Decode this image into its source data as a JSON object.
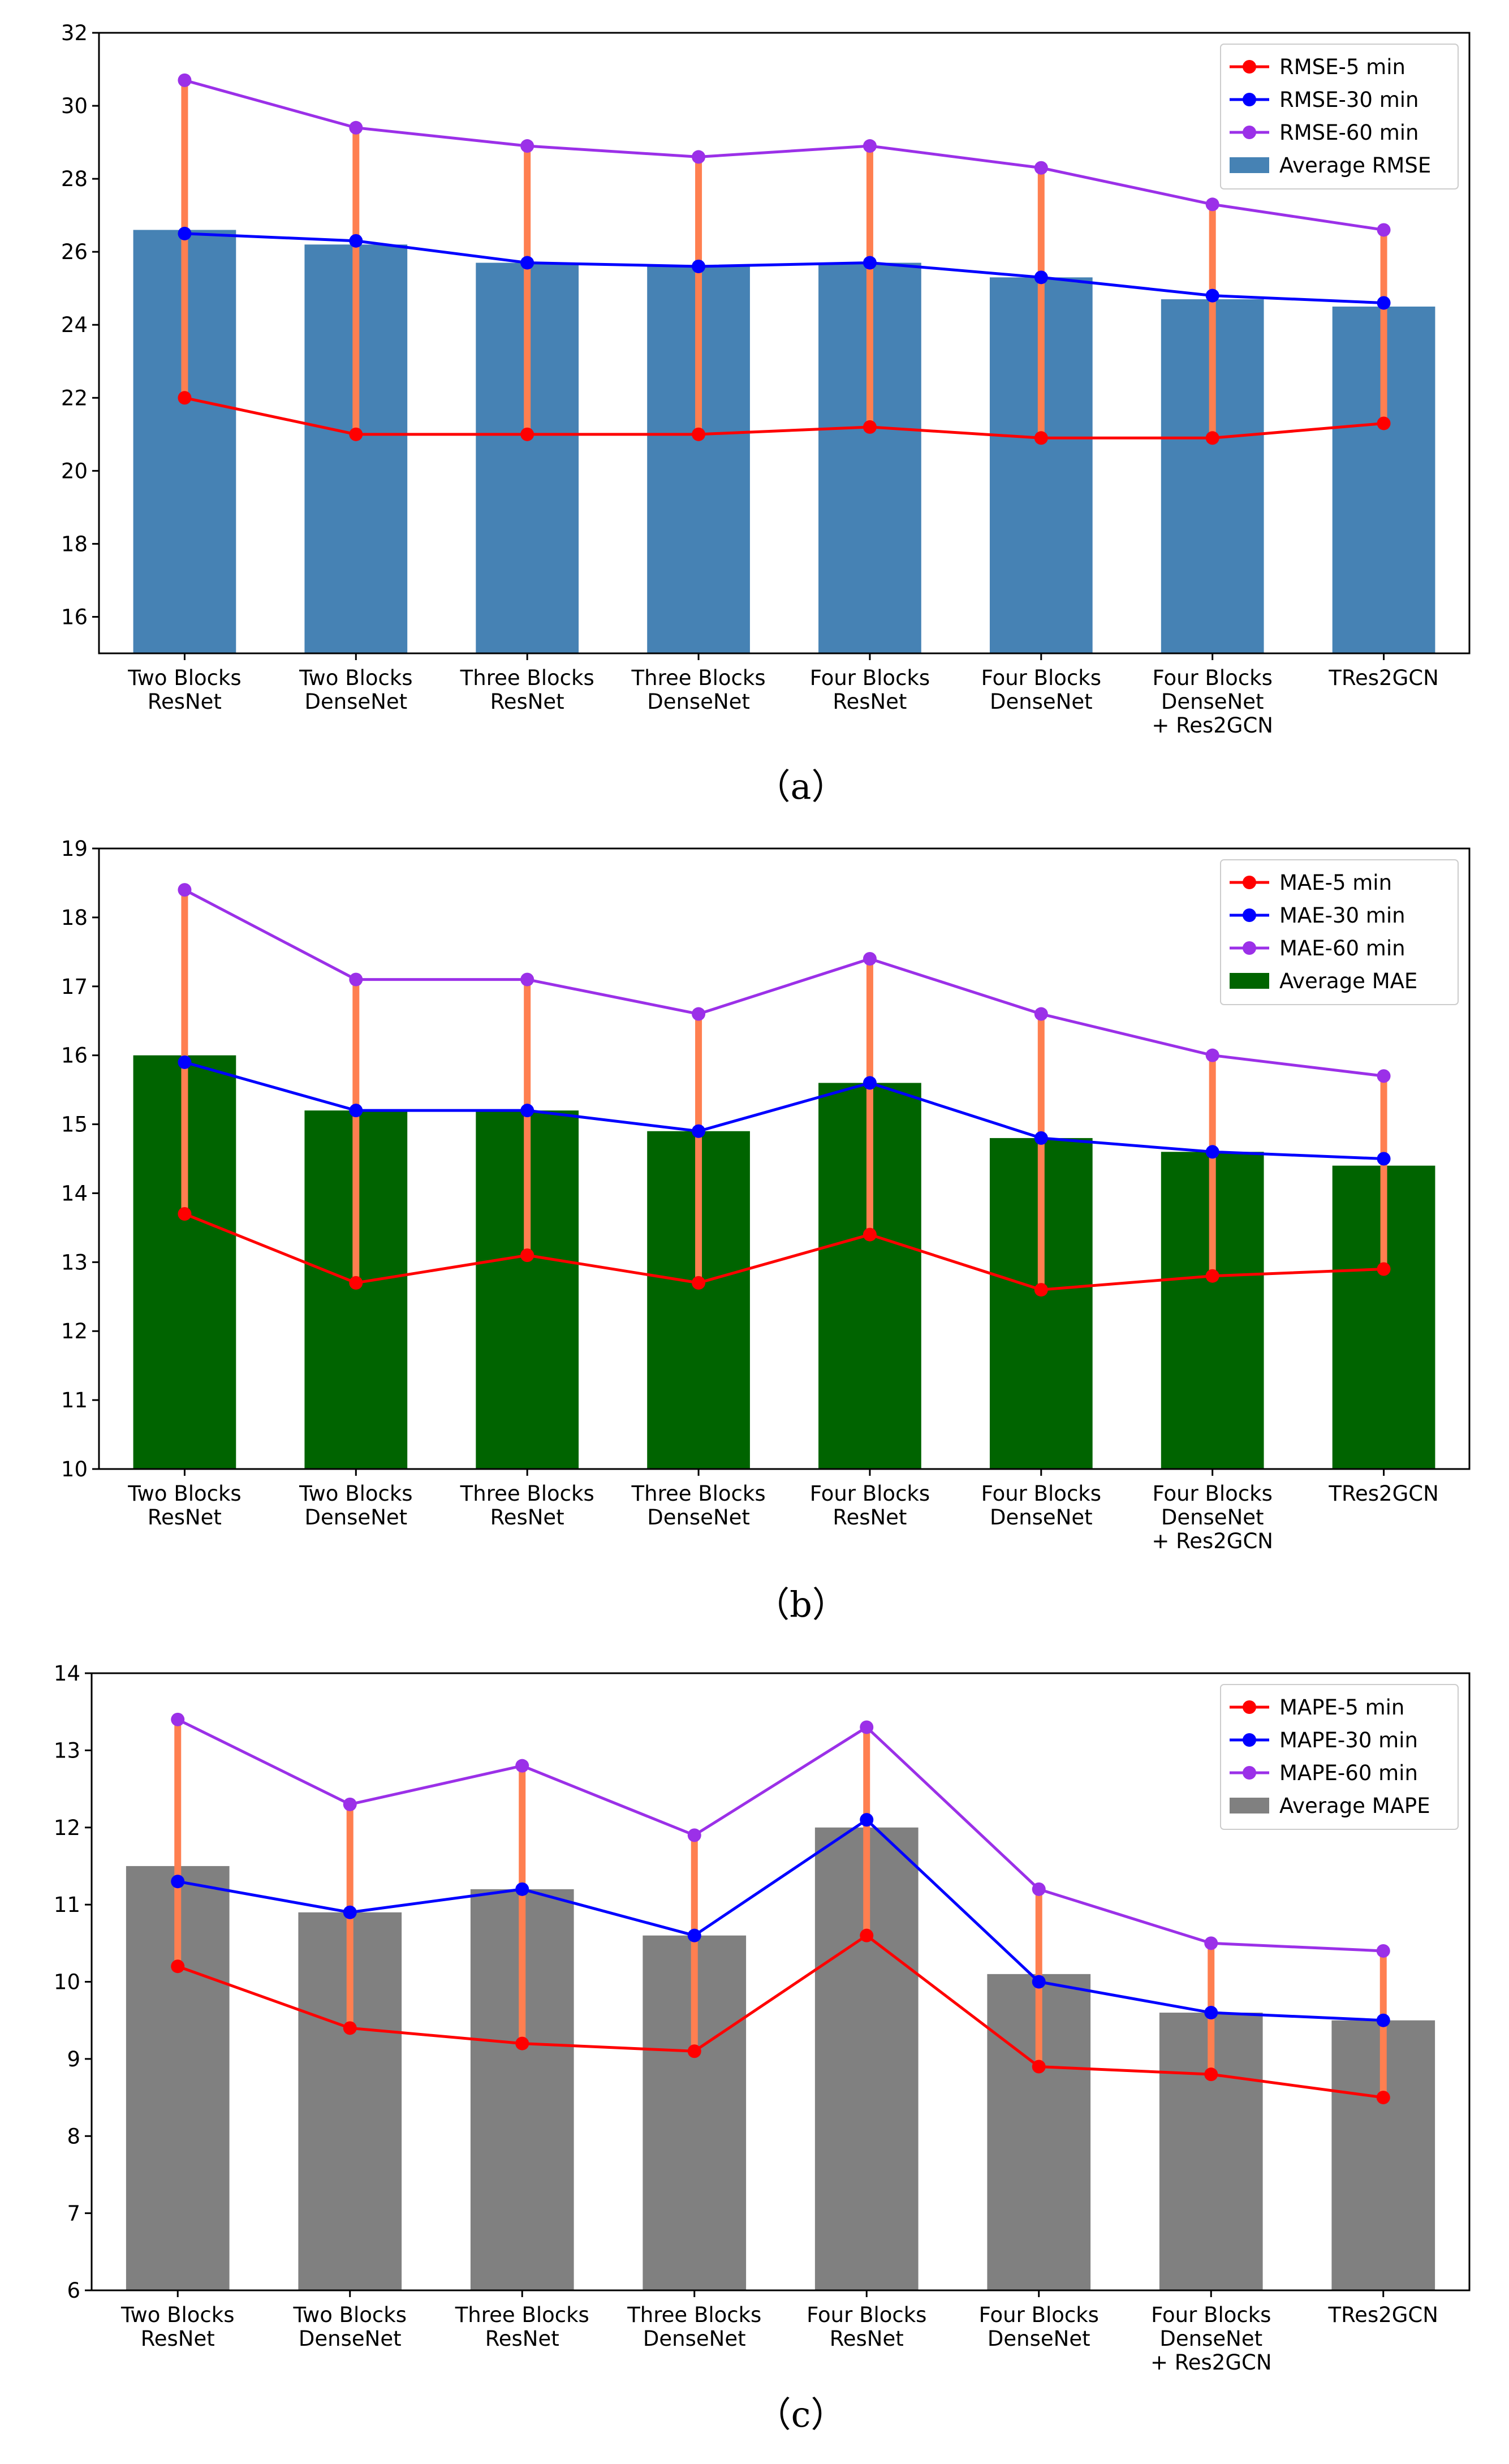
{
  "chart_data": [
    {
      "id": "a",
      "type": "bar",
      "caption": "（a）",
      "categories": [
        "Two Blocks\nResNet",
        "Two Blocks\nDenseNet",
        "Three Blocks\nResNet",
        "Three Blocks\nDenseNet",
        "Four Blocks\nResNet",
        "Four Blocks\nDenseNet",
        "Four Blocks\nDenseNet\n+ Res2GCN",
        "TRes2GCN"
      ],
      "ylim": [
        15,
        32
      ],
      "yticks": [
        16,
        18,
        20,
        22,
        24,
        26,
        28,
        30,
        32
      ],
      "bar": {
        "name": "Average RMSE",
        "color": "#4682b4",
        "values": [
          26.6,
          26.2,
          25.7,
          25.6,
          25.7,
          25.3,
          24.7,
          24.5
        ]
      },
      "series": [
        {
          "name": "RMSE-5 min",
          "color": "#ff0000",
          "values": [
            22.0,
            21.0,
            21.0,
            21.0,
            21.2,
            20.9,
            20.9,
            21.3
          ]
        },
        {
          "name": "RMSE-30 min",
          "color": "#0000ff",
          "values": [
            26.5,
            26.3,
            25.7,
            25.6,
            25.7,
            25.3,
            24.8,
            24.6
          ]
        },
        {
          "name": "RMSE-60 min",
          "color": "#9b30e8",
          "values": [
            30.7,
            29.4,
            28.9,
            28.6,
            28.9,
            28.3,
            27.3,
            26.6
          ]
        }
      ],
      "errorbar_color": "#ff7f50"
    },
    {
      "id": "b",
      "type": "bar",
      "caption": "（b）",
      "categories": [
        "Two Blocks\nResNet",
        "Two Blocks\nDenseNet",
        "Three Blocks\nResNet",
        "Three Blocks\nDenseNet",
        "Four Blocks\nResNet",
        "Four Blocks\nDenseNet",
        "Four Blocks\nDenseNet\n+ Res2GCN",
        "TRes2GCN"
      ],
      "ylim": [
        10,
        19
      ],
      "yticks": [
        10,
        11,
        12,
        13,
        14,
        15,
        16,
        17,
        18,
        19
      ],
      "bar": {
        "name": "Average MAE",
        "color": "#006400",
        "values": [
          16.0,
          15.2,
          15.2,
          14.9,
          15.6,
          14.8,
          14.6,
          14.4
        ]
      },
      "series": [
        {
          "name": "MAE-5 min",
          "color": "#ff0000",
          "values": [
            13.7,
            12.7,
            13.1,
            12.7,
            13.4,
            12.6,
            12.8,
            12.9
          ]
        },
        {
          "name": "MAE-30 min",
          "color": "#0000ff",
          "values": [
            15.9,
            15.2,
            15.2,
            14.9,
            15.6,
            14.8,
            14.6,
            14.5
          ]
        },
        {
          "name": "MAE-60 min",
          "color": "#9b30e8",
          "values": [
            18.4,
            17.1,
            17.1,
            16.6,
            17.4,
            16.6,
            16.0,
            15.7
          ]
        }
      ],
      "errorbar_color": "#ff7f50"
    },
    {
      "id": "c",
      "type": "bar",
      "caption": "（c）",
      "categories": [
        "Two Blocks\nResNet",
        "Two Blocks\nDenseNet",
        "Three Blocks\nResNet",
        "Three Blocks\nDenseNet",
        "Four Blocks\nResNet",
        "Four Blocks\nDenseNet",
        "Four Blocks\nDenseNet\n+ Res2GCN",
        "TRes2GCN"
      ],
      "ylim": [
        6,
        14
      ],
      "yticks": [
        6,
        7,
        8,
        9,
        10,
        11,
        12,
        13,
        14
      ],
      "bar": {
        "name": "Average MAPE",
        "color": "#808080",
        "values": [
          11.5,
          10.9,
          11.2,
          10.6,
          12.0,
          10.1,
          9.6,
          9.5
        ]
      },
      "series": [
        {
          "name": "MAPE-5 min",
          "color": "#ff0000",
          "values": [
            10.2,
            9.4,
            9.2,
            9.1,
            10.6,
            8.9,
            8.8,
            8.5
          ]
        },
        {
          "name": "MAPE-30 min",
          "color": "#0000ff",
          "values": [
            11.3,
            10.9,
            11.2,
            10.6,
            12.1,
            10.0,
            9.6,
            9.5
          ]
        },
        {
          "name": "MAPE-60 min",
          "color": "#9b30e8",
          "values": [
            13.4,
            12.3,
            12.8,
            11.9,
            13.3,
            11.2,
            10.5,
            10.4
          ]
        }
      ],
      "errorbar_color": "#ff7f50"
    }
  ]
}
